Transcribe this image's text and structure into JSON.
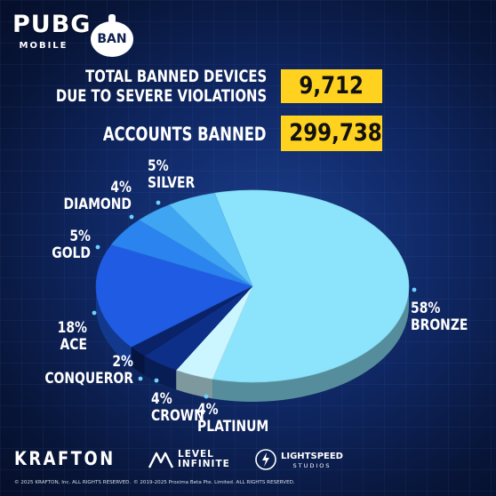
{
  "brand": {
    "pubg_big": "PUBG",
    "pubg_small": "MOBILE",
    "ban_badge": "BAN"
  },
  "stats": {
    "devices_label_line1": "TOTAL BANNED DEVICES",
    "devices_label_line2": "DUE TO SEVERE VIOLATIONS",
    "devices_value": "9,712",
    "accounts_label": "ACCOUNTS BANNED",
    "accounts_value": "299,738"
  },
  "chart_data": {
    "type": "pie",
    "slices": [
      {
        "name": "BRONZE",
        "pct_label": "58%",
        "value": 58,
        "color": "#8be4fb"
      },
      {
        "name": "PLATINUM",
        "pct_label": "4%",
        "value": 4,
        "color": "#ccf6ff"
      },
      {
        "name": "CROWN",
        "pct_label": "4%",
        "value": 4,
        "color": "#0d2f88"
      },
      {
        "name": "CONQUEROR",
        "pct_label": "2%",
        "value": 2,
        "color": "#0a2268"
      },
      {
        "name": "ACE",
        "pct_label": "18%",
        "value": 18,
        "color": "#1f5ce3"
      },
      {
        "name": "GOLD",
        "pct_label": "5%",
        "value": 5,
        "color": "#2a83ee"
      },
      {
        "name": "DIAMOND",
        "pct_label": "4%",
        "value": 4,
        "color": "#3fa4f2"
      },
      {
        "name": "SILVER",
        "pct_label": "5%",
        "value": 5,
        "color": "#5fc4f8"
      }
    ]
  },
  "footer": {
    "krafton": "KRAFTON",
    "level_line1": "LEVEL",
    "level_line2": "INFINITE",
    "lightspeed_line1": "LIGHTSPEED",
    "lightspeed_line2": "STUDIOS",
    "copyright_left": "© 2025 KRAFTON, Inc. ALL RIGHTS RESERVED.",
    "copyright_right": "© 2019-2025 Proxima Beta Pte. Limited. ALL RIGHTS RESERVED."
  },
  "colors": {
    "accent_yellow": "#ffd21f",
    "background": "#0f2763"
  }
}
